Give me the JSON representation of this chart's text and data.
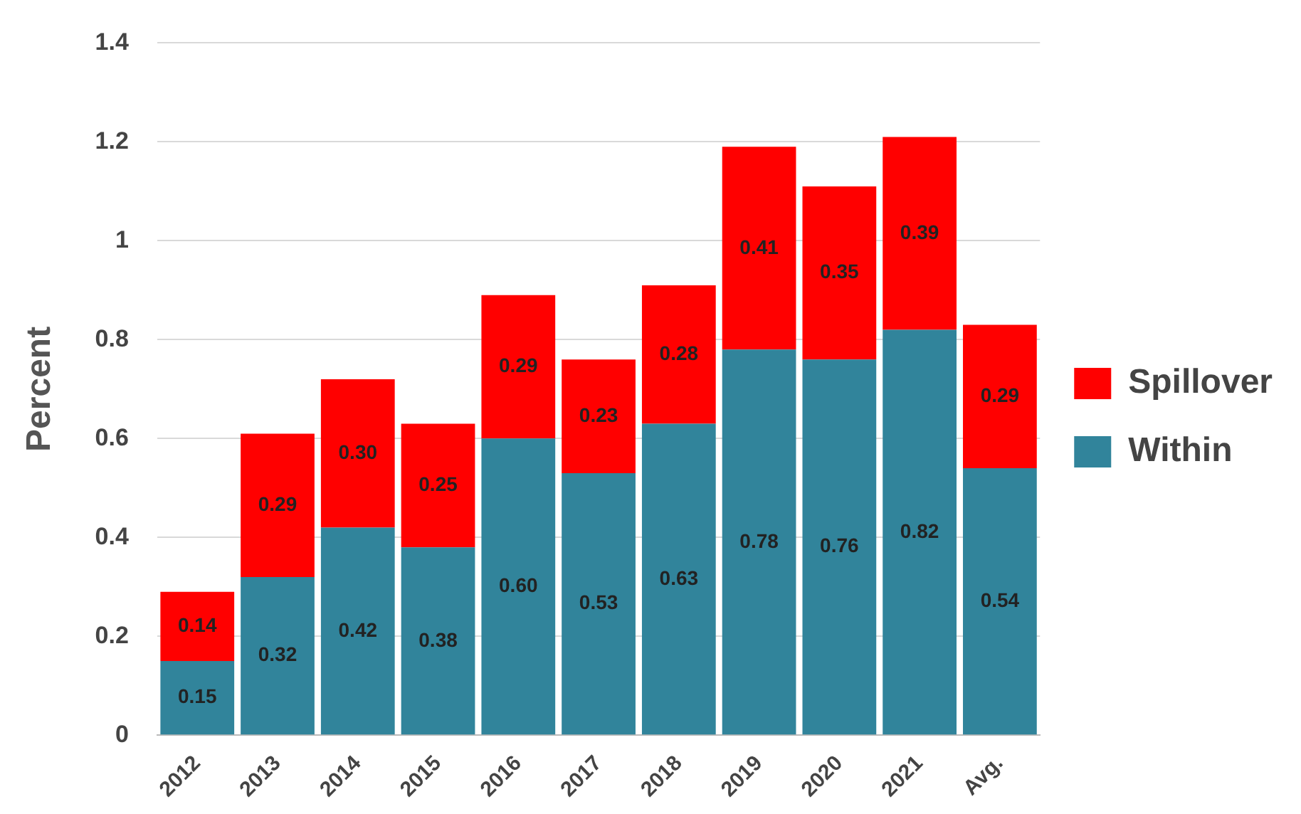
{
  "chart_data": {
    "type": "bar",
    "stacked": true,
    "ylabel": "Percent",
    "categories": [
      "2012",
      "2013",
      "2014",
      "2015",
      "2016",
      "2017",
      "2018",
      "2019",
      "2020",
      "2021",
      "Avg."
    ],
    "series": [
      {
        "name": "Within",
        "color": "#31849b",
        "values": [
          0.15,
          0.32,
          0.42,
          0.38,
          0.6,
          0.53,
          0.63,
          0.78,
          0.76,
          0.82,
          0.54
        ],
        "value_labels": [
          "0.15",
          "0.32",
          "0.42",
          "0.38",
          "0.60",
          "0.53",
          "0.63",
          "0.78",
          "0.76",
          "0.82",
          "0.54"
        ]
      },
      {
        "name": "Spillover",
        "color": "#ff0000",
        "values": [
          0.14,
          0.29,
          0.3,
          0.25,
          0.29,
          0.23,
          0.28,
          0.41,
          0.35,
          0.39,
          0.29
        ],
        "value_labels": [
          "0.14",
          "0.29",
          "0.30",
          "0.25",
          "0.29",
          "0.23",
          "0.28",
          "0.41",
          "0.35",
          "0.39",
          "0.29"
        ]
      }
    ],
    "ylim": [
      0,
      1.4
    ],
    "yticks": [
      0,
      0.2,
      0.4,
      0.6,
      0.8,
      1,
      1.2,
      1.4
    ],
    "grid": "y",
    "legend": "right"
  }
}
